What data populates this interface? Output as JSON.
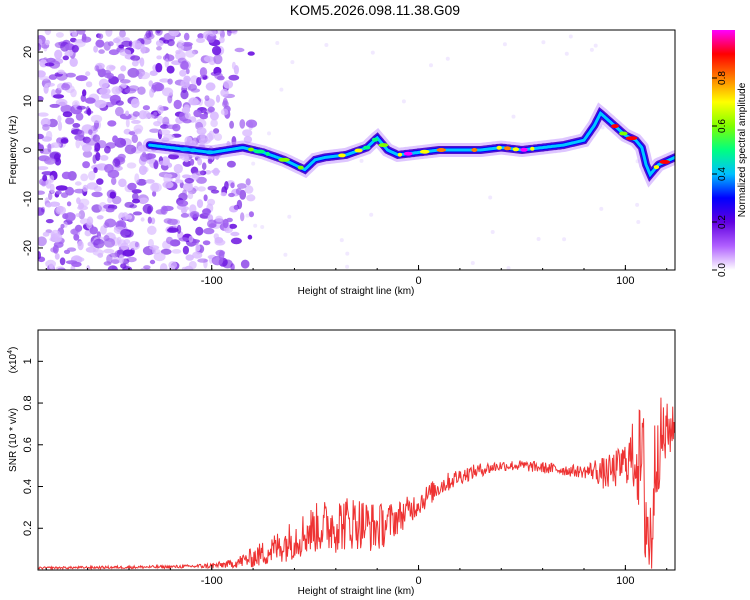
{
  "title": "KOM5.2026.098.11.38.G09",
  "chart_data": [
    {
      "id": "spectrogram",
      "type": "heatmap",
      "xlabel": "Height of straight line (km)",
      "ylabel": "Frequency (Hz)",
      "xlim": [
        -184,
        124
      ],
      "ylim": [
        -24.5,
        24.5
      ],
      "xticks": [
        -100,
        0,
        100
      ],
      "yticks": [
        -20,
        -10,
        0,
        10,
        20
      ],
      "colorbar": {
        "label": "Normalized spectral amplitude",
        "range": [
          0,
          1
        ],
        "ticks": [
          "0.0",
          "0.2",
          "0.4",
          "0.6",
          "0.8"
        ],
        "colormap": [
          "#ffffff",
          "#b060ff",
          "#6000e0",
          "#0000ff",
          "#00c0ff",
          "#00ff80",
          "#80ff00",
          "#ffff00",
          "#ff8000",
          "#ff0000",
          "#ff00ff"
        ]
      },
      "ridge": {
        "x": [
          -130,
          -120,
          -100,
          -85,
          -75,
          -65,
          -55,
          -50,
          -45,
          -35,
          -25,
          -20,
          -15,
          -10,
          0,
          10,
          20,
          30,
          40,
          50,
          60,
          70,
          80,
          85,
          88,
          92,
          100,
          105,
          108,
          110,
          112,
          116,
          124
        ],
        "freq": [
          1,
          0.5,
          -0.5,
          0.5,
          -0.5,
          -2,
          -4,
          -2,
          -1.5,
          -1,
          0.5,
          2.5,
          0,
          -1,
          -0.5,
          0,
          0,
          0,
          0.5,
          0,
          0.5,
          1,
          2,
          5,
          7.5,
          6,
          3,
          2,
          0.5,
          -3,
          -5,
          -3,
          -1.5
        ]
      },
      "noise_region_x": [
        -184,
        -85
      ]
    },
    {
      "id": "snr",
      "type": "line",
      "xlabel": "Height of straight line (km)",
      "ylabel": "SNR (10 * v/v)",
      "scale_label": "(x10",
      "scale_exponent": "4",
      "color": "#ee3333",
      "xlim": [
        -184,
        124
      ],
      "ylim": [
        0,
        1.15
      ],
      "xticks": [
        -100,
        0,
        100
      ],
      "yticks": [
        0.2,
        0.4,
        0.6,
        0.8,
        1.0
      ],
      "ytick_labels": [
        "0.2",
        "0.4",
        "0.6",
        "0.8",
        "1"
      ],
      "trend": {
        "x": [
          -184,
          -120,
          -100,
          -90,
          -80,
          -70,
          -60,
          -50,
          -40,
          -30,
          -20,
          -10,
          0,
          10,
          20,
          30,
          40,
          50,
          60,
          70,
          80,
          85,
          90,
          95,
          100,
          105,
          108,
          110,
          112,
          115,
          120,
          124
        ],
        "y": [
          0.01,
          0.015,
          0.02,
          0.03,
          0.06,
          0.1,
          0.15,
          0.2,
          0.22,
          0.23,
          0.2,
          0.25,
          0.32,
          0.4,
          0.45,
          0.48,
          0.5,
          0.5,
          0.49,
          0.48,
          0.47,
          0.48,
          0.46,
          0.48,
          0.52,
          0.55,
          0.5,
          0.3,
          0.1,
          0.6,
          0.65,
          0.7
        ]
      },
      "noise_amplitude": {
        "x": [
          -184,
          -110,
          -90,
          -80,
          -60,
          -40,
          -20,
          -10,
          0,
          20,
          40,
          80,
          90,
          100,
          105,
          110,
          115,
          124
        ],
        "y": [
          0.005,
          0.008,
          0.02,
          0.05,
          0.1,
          0.14,
          0.12,
          0.08,
          0.06,
          0.04,
          0.025,
          0.03,
          0.08,
          0.1,
          0.2,
          0.4,
          0.25,
          0.08
        ]
      }
    }
  ]
}
